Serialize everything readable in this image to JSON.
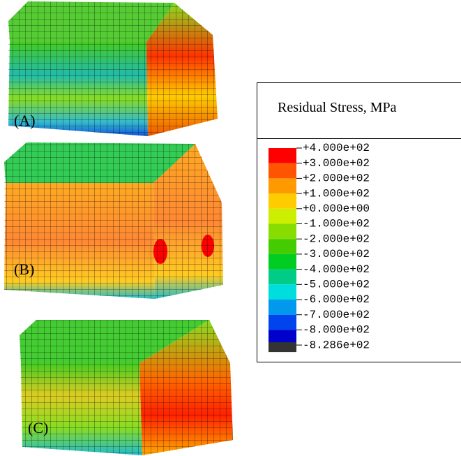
{
  "panels": [
    {
      "label": "(A)"
    },
    {
      "label": "(B)"
    },
    {
      "label": "(C)"
    }
  ],
  "legend": {
    "title": "Residual Stress, MPa",
    "labels": [
      "+4.000e+02",
      "+3.000e+02",
      "+2.000e+02",
      "+1.000e+02",
      "+0.000e+00",
      "-1.000e+02",
      "-2.000e+02",
      "-3.000e+02",
      "-4.000e+02",
      "-5.000e+02",
      "-6.000e+02",
      "-7.000e+02",
      "-8.000e+02",
      "-8.286e+02"
    ],
    "colors": [
      "#ff0000",
      "#ff5500",
      "#ff9900",
      "#ffcc00",
      "#ccee00",
      "#88dd00",
      "#44cc00",
      "#00cc22",
      "#00cc88",
      "#00dddd",
      "#0099ee",
      "#0044ee",
      "#0000cc"
    ]
  }
}
